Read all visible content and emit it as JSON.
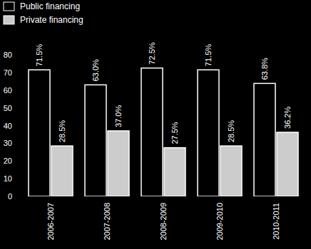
{
  "chart_data": {
    "type": "bar",
    "categories": [
      "2006-2007",
      "2007-2008",
      "2008-2009",
      "2009-2010",
      "2010-2011"
    ],
    "series": [
      {
        "name": "Public financing",
        "color": "#000000",
        "values": [
          71.5,
          63.0,
          72.5,
          71.5,
          63.8
        ],
        "value_labels": [
          "71.5%",
          "63.0%",
          "72.5%",
          "71.5%",
          "63.8%"
        ]
      },
      {
        "name": "Private financing",
        "color": "#cccccc",
        "values": [
          28.5,
          37.0,
          27.5,
          28.5,
          36.2
        ],
        "value_labels": [
          "28.5%",
          "37.0%",
          "27.5%",
          "28.5%",
          "36.2%"
        ]
      }
    ],
    "ylim": [
      0,
      80
    ],
    "yticks": [
      0,
      10,
      20,
      30,
      40,
      50,
      60,
      70,
      80
    ],
    "grid": false,
    "legend": "top-left",
    "data_labels": true
  }
}
